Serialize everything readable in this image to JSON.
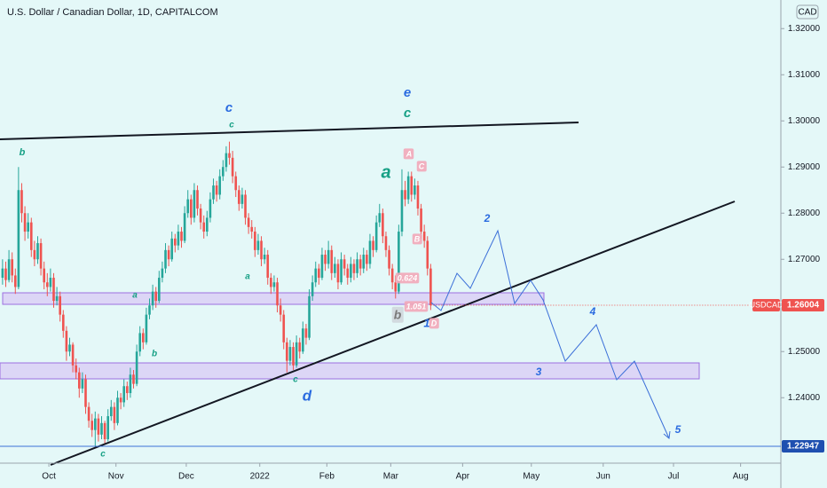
{
  "chart_data": {
    "type": "candlestick",
    "title": "U.S. Dollar / Canadian Dollar, 1D, CAPITALCOM",
    "currency": "CAD",
    "symbol": "USDCAD",
    "last_price": {
      "value": 1.26004,
      "label": "1.26004"
    },
    "level": {
      "value": 1.22947,
      "label": "1.22947"
    },
    "up_color": "#26a69a",
    "down_color": "#ef5350",
    "ylim": [
      1.2262,
      1.3262
    ],
    "xlim": [
      -0.8,
      243.6
    ],
    "yticks": [
      {
        "value": 1.32,
        "label": "1.32000"
      },
      {
        "value": 1.31,
        "label": "1.31000"
      },
      {
        "value": 1.3,
        "label": "1.30000"
      },
      {
        "value": 1.29,
        "label": "1.29000"
      },
      {
        "value": 1.28,
        "label": "1.28000"
      },
      {
        "value": 1.27,
        "label": "1.27000"
      },
      {
        "value": 1.25,
        "label": "1.25000"
      },
      {
        "value": 1.24,
        "label": "1.24000"
      }
    ],
    "xticks": [
      {
        "value": 14.5,
        "label": "Oct"
      },
      {
        "value": 35.5,
        "label": "Nov"
      },
      {
        "value": 57.5,
        "label": "Dec"
      },
      {
        "value": 80.5,
        "label": "2022"
      },
      {
        "value": 101.5,
        "label": "Feb"
      },
      {
        "value": 121.5,
        "label": "Mar"
      },
      {
        "value": 144,
        "label": "Apr"
      },
      {
        "value": 165.5,
        "label": "May"
      },
      {
        "value": 188,
        "label": "Jun"
      },
      {
        "value": 210,
        "label": "Jul"
      },
      {
        "value": 231,
        "label": "Aug"
      }
    ],
    "grid": false,
    "annotations": [
      "b",
      "c",
      "c",
      "e",
      "c",
      "a",
      "a",
      "a",
      "b",
      "c",
      "c",
      "d",
      "b",
      "1",
      "2",
      "3",
      "4",
      "5",
      "A",
      "C",
      "B",
      "0.624",
      "1.051",
      "D"
    ],
    "ohlc": [
      [
        1.266,
        1.27,
        1.2645,
        1.268
      ],
      [
        1.268,
        1.2695,
        1.264,
        1.2655
      ],
      [
        1.2655,
        1.272,
        1.265,
        1.27
      ],
      [
        1.27,
        1.2715,
        1.265,
        1.2665
      ],
      [
        1.2665,
        1.268,
        1.2625,
        1.264
      ],
      [
        1.264,
        1.29,
        1.2635,
        1.285
      ],
      [
        1.285,
        1.2865,
        1.278,
        1.28
      ],
      [
        1.28,
        1.2815,
        1.274,
        1.276
      ],
      [
        1.276,
        1.28,
        1.2745,
        1.278
      ],
      [
        1.278,
        1.279,
        1.2705,
        1.272
      ],
      [
        1.272,
        1.274,
        1.2685,
        1.27
      ],
      [
        1.27,
        1.275,
        1.269,
        1.2735
      ],
      [
        1.2735,
        1.2745,
        1.2665,
        1.268
      ],
      [
        1.268,
        1.2695,
        1.2635,
        1.265
      ],
      [
        1.265,
        1.267,
        1.262,
        1.264
      ],
      [
        1.264,
        1.268,
        1.263,
        1.266
      ],
      [
        1.266,
        1.267,
        1.2595,
        1.261
      ],
      [
        1.261,
        1.264,
        1.26,
        1.262
      ],
      [
        1.262,
        1.263,
        1.2565,
        1.258
      ],
      [
        1.258,
        1.259,
        1.253,
        1.2545
      ],
      [
        1.2545,
        1.2555,
        1.248,
        1.25
      ],
      [
        1.25,
        1.253,
        1.249,
        1.2515
      ],
      [
        1.2515,
        1.252,
        1.2455,
        1.247
      ],
      [
        1.247,
        1.2485,
        1.244,
        1.2455
      ],
      [
        1.2455,
        1.2465,
        1.24,
        1.242
      ],
      [
        1.242,
        1.2455,
        1.241,
        1.244
      ],
      [
        1.244,
        1.245,
        1.2365,
        1.238
      ],
      [
        1.238,
        1.239,
        1.2335,
        1.235
      ],
      [
        1.235,
        1.2365,
        1.2315,
        1.233
      ],
      [
        1.233,
        1.237,
        1.2295,
        1.2355
      ],
      [
        1.2355,
        1.2365,
        1.2305,
        1.232
      ],
      [
        1.232,
        1.236,
        1.231,
        1.2345
      ],
      [
        1.2345,
        1.235,
        1.2298,
        1.231
      ],
      [
        1.231,
        1.2375,
        1.2305,
        1.236
      ],
      [
        1.236,
        1.2395,
        1.235,
        1.238
      ],
      [
        1.238,
        1.239,
        1.233,
        1.2345
      ],
      [
        1.2345,
        1.2415,
        1.234,
        1.24
      ],
      [
        1.24,
        1.241,
        1.2375,
        1.239
      ],
      [
        1.239,
        1.244,
        1.238,
        1.2425
      ],
      [
        1.2425,
        1.2435,
        1.2395,
        1.241
      ],
      [
        1.241,
        1.2465,
        1.24,
        1.245
      ],
      [
        1.245,
        1.246,
        1.242,
        1.243
      ],
      [
        1.243,
        1.2515,
        1.2425,
        1.25
      ],
      [
        1.25,
        1.2555,
        1.249,
        1.254
      ],
      [
        1.254,
        1.255,
        1.2505,
        1.252
      ],
      [
        1.252,
        1.2595,
        1.2515,
        1.258
      ],
      [
        1.258,
        1.2615,
        1.257,
        1.26
      ],
      [
        1.26,
        1.2645,
        1.259,
        1.263
      ],
      [
        1.263,
        1.264,
        1.2595,
        1.261
      ],
      [
        1.261,
        1.2675,
        1.2605,
        1.266
      ],
      [
        1.266,
        1.2695,
        1.265,
        1.268
      ],
      [
        1.268,
        1.2735,
        1.267,
        1.272
      ],
      [
        1.272,
        1.273,
        1.2685,
        1.27
      ],
      [
        1.27,
        1.276,
        1.2695,
        1.2745
      ],
      [
        1.2745,
        1.2755,
        1.2715,
        1.273
      ],
      [
        1.273,
        1.2775,
        1.272,
        1.276
      ],
      [
        1.276,
        1.277,
        1.2725,
        1.274
      ],
      [
        1.274,
        1.2815,
        1.2735,
        1.28
      ],
      [
        1.28,
        1.285,
        1.279,
        1.283
      ],
      [
        1.283,
        1.284,
        1.2775,
        1.279
      ],
      [
        1.279,
        1.2865,
        1.278,
        1.285
      ],
      [
        1.285,
        1.286,
        1.2795,
        1.281
      ],
      [
        1.281,
        1.282,
        1.2765,
        1.278
      ],
      [
        1.278,
        1.2795,
        1.2745,
        1.276
      ],
      [
        1.276,
        1.2805,
        1.275,
        1.279
      ],
      [
        1.279,
        1.2845,
        1.278,
        1.283
      ],
      [
        1.283,
        1.2875,
        1.282,
        1.286
      ],
      [
        1.286,
        1.287,
        1.2825,
        1.284
      ],
      [
        1.284,
        1.2895,
        1.283,
        1.288
      ],
      [
        1.288,
        1.2915,
        1.287,
        1.29
      ],
      [
        1.29,
        1.2945,
        1.289,
        1.293
      ],
      [
        1.293,
        1.2955,
        1.2905,
        1.292
      ],
      [
        1.292,
        1.2935,
        1.2865,
        1.288
      ],
      [
        1.288,
        1.289,
        1.2835,
        1.285
      ],
      [
        1.285,
        1.286,
        1.2805,
        1.282
      ],
      [
        1.282,
        1.2855,
        1.281,
        1.284
      ],
      [
        1.284,
        1.285,
        1.2775,
        1.279
      ],
      [
        1.279,
        1.28,
        1.2755,
        1.277
      ],
      [
        1.277,
        1.2785,
        1.2745,
        1.276
      ],
      [
        1.276,
        1.277,
        1.2705,
        1.272
      ],
      [
        1.272,
        1.2755,
        1.271,
        1.274
      ],
      [
        1.274,
        1.275,
        1.2685,
        1.27
      ],
      [
        1.27,
        1.2725,
        1.269,
        1.271
      ],
      [
        1.271,
        1.272,
        1.2645,
        1.266
      ],
      [
        1.266,
        1.267,
        1.2625,
        1.264
      ],
      [
        1.264,
        1.2665,
        1.263,
        1.265
      ],
      [
        1.265,
        1.266,
        1.2585,
        1.26
      ],
      [
        1.26,
        1.2615,
        1.2565,
        1.258
      ],
      [
        1.258,
        1.259,
        1.2505,
        1.252
      ],
      [
        1.252,
        1.253,
        1.2455,
        1.248
      ],
      [
        1.248,
        1.2525,
        1.247,
        1.251
      ],
      [
        1.251,
        1.252,
        1.246,
        1.247
      ],
      [
        1.247,
        1.2535,
        1.2465,
        1.252
      ],
      [
        1.252,
        1.253,
        1.2485,
        1.25
      ],
      [
        1.25,
        1.2565,
        1.2495,
        1.255
      ],
      [
        1.255,
        1.256,
        1.2515,
        1.253
      ],
      [
        1.253,
        1.2635,
        1.2525,
        1.262
      ],
      [
        1.262,
        1.2665,
        1.261,
        1.265
      ],
      [
        1.265,
        1.2695,
        1.264,
        1.268
      ],
      [
        1.268,
        1.269,
        1.2645,
        1.266
      ],
      [
        1.266,
        1.2725,
        1.2655,
        1.271
      ],
      [
        1.271,
        1.272,
        1.2675,
        1.269
      ],
      [
        1.269,
        1.274,
        1.268,
        1.272
      ],
      [
        1.272,
        1.273,
        1.2655,
        1.267
      ],
      [
        1.267,
        1.2705,
        1.266,
        1.269
      ],
      [
        1.269,
        1.27,
        1.2635,
        1.265
      ],
      [
        1.265,
        1.2715,
        1.2645,
        1.27
      ],
      [
        1.27,
        1.271,
        1.2665,
        1.268
      ],
      [
        1.268,
        1.269,
        1.2645,
        1.266
      ],
      [
        1.266,
        1.2705,
        1.265,
        1.269
      ],
      [
        1.269,
        1.27,
        1.2655,
        1.267
      ],
      [
        1.267,
        1.2715,
        1.266,
        1.27
      ],
      [
        1.27,
        1.271,
        1.2665,
        1.268
      ],
      [
        1.268,
        1.2725,
        1.267,
        1.271
      ],
      [
        1.271,
        1.272,
        1.2675,
        1.269
      ],
      [
        1.269,
        1.2755,
        1.268,
        1.274
      ],
      [
        1.274,
        1.275,
        1.2705,
        1.272
      ],
      [
        1.272,
        1.2795,
        1.2715,
        1.278
      ],
      [
        1.278,
        1.282,
        1.277,
        1.28
      ],
      [
        1.28,
        1.281,
        1.2735,
        1.275
      ],
      [
        1.275,
        1.276,
        1.2705,
        1.272
      ],
      [
        1.272,
        1.273,
        1.2665,
        1.268
      ],
      [
        1.268,
        1.269,
        1.2635,
        1.265
      ],
      [
        1.265,
        1.2665,
        1.2615,
        1.263
      ],
      [
        1.263,
        1.2775,
        1.2625,
        1.276
      ],
      [
        1.276,
        1.2895,
        1.275,
        1.285
      ],
      [
        1.285,
        1.287,
        1.2815,
        1.283
      ],
      [
        1.283,
        1.289,
        1.282,
        1.288
      ],
      [
        1.288,
        1.289,
        1.2825,
        1.284
      ],
      [
        1.284,
        1.2875,
        1.283,
        1.286
      ],
      [
        1.286,
        1.287,
        1.2795,
        1.281
      ],
      [
        1.281,
        1.282,
        1.2745,
        1.276
      ],
      [
        1.276,
        1.2775,
        1.2725,
        1.274
      ],
      [
        1.274,
        1.275,
        1.2665,
        1.268
      ],
      [
        1.268,
        1.269,
        1.259,
        1.26004
      ]
    ]
  }
}
